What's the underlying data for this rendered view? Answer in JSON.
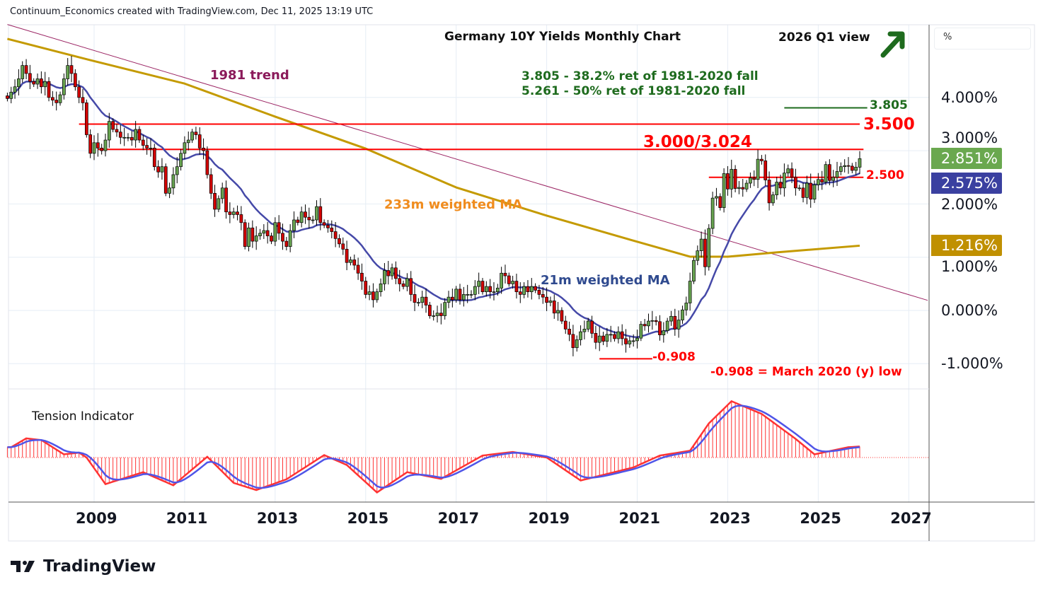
{
  "header": {
    "credit": "Continuum_Economics created with TradingView.com, Dec 11, 2025 13:19 UTC"
  },
  "unit_label": "%",
  "logo_text": "TradingView",
  "colors": {
    "up": "#67a350",
    "down": "#d40000",
    "ma21": "#4549a8",
    "ma233": "#c49a00",
    "trend": "#9b2463",
    "level": "#ff0000",
    "fib": "#1e6b1e",
    "tension": "#ff3333",
    "tension_signal": "#4f55e8"
  },
  "chart_data": {
    "type": "candlestick",
    "title": "Germany 10Y Yields Monthly Chart",
    "view_label": "2026 Q1 view",
    "view_direction": "up",
    "ylabel": "%",
    "ylim": [
      -1.35,
      5.8
    ],
    "yticks": [
      "4.000%",
      "3.000%",
      "2.000%",
      "1.000%",
      "0.000%",
      "-1.000%"
    ],
    "ytick_values": [
      4,
      3,
      2,
      1,
      0,
      -1
    ],
    "xticks": [
      "2009",
      "2011",
      "2013",
      "2015",
      "2017",
      "2019",
      "2021",
      "2023",
      "2025",
      "2027"
    ],
    "start": "2007-02",
    "monthly_closes": {
      "2007": [
        3.98,
        4.1,
        4.2,
        4.35,
        4.6,
        4.45,
        4.3,
        4.25,
        4.35,
        4.2,
        4.3
      ],
      "2008": [
        4.0,
        3.95,
        3.9,
        4.05,
        4.35,
        4.6,
        4.45,
        4.2,
        4.0,
        3.9,
        3.3,
        2.95
      ],
      "2009": [
        3.15,
        3.05,
        3.0,
        3.2,
        3.55,
        3.4,
        3.35,
        3.25,
        3.25,
        3.25,
        3.2,
        3.4
      ],
      "2010": [
        3.2,
        3.1,
        3.05,
        3.05,
        2.7,
        2.6,
        2.7,
        2.2,
        2.3,
        2.55,
        2.7,
        2.95
      ],
      "2011": [
        3.15,
        3.2,
        3.35,
        3.3,
        3.05,
        3.0,
        2.55,
        2.2,
        1.9,
        2.1,
        2.3,
        1.85
      ],
      "2012": [
        1.8,
        1.85,
        1.8,
        1.65,
        1.2,
        1.55,
        1.3,
        1.4,
        1.45,
        1.5,
        1.4,
        1.3
      ],
      "2013": [
        1.65,
        1.45,
        1.3,
        1.2,
        1.5,
        1.7,
        1.65,
        1.85,
        1.75,
        1.7,
        1.7,
        1.95
      ],
      "2014": [
        1.65,
        1.6,
        1.55,
        1.48,
        1.35,
        1.25,
        1.15,
        0.9,
        0.95,
        0.85,
        0.7,
        0.55
      ],
      "2015": [
        0.3,
        0.35,
        0.2,
        0.35,
        0.5,
        0.75,
        0.65,
        0.8,
        0.6,
        0.5,
        0.45,
        0.6
      ],
      "2016": [
        0.3,
        0.15,
        0.15,
        0.25,
        0.1,
        -0.1,
        -0.1,
        -0.05,
        -0.1,
        0.15,
        0.25,
        0.2
      ],
      "2017": [
        0.4,
        0.2,
        0.3,
        0.3,
        0.3,
        0.45,
        0.55,
        0.35,
        0.45,
        0.35,
        0.35,
        0.42
      ],
      "2018": [
        0.7,
        0.65,
        0.5,
        0.55,
        0.35,
        0.3,
        0.45,
        0.35,
        0.45,
        0.38,
        0.3,
        0.25
      ],
      "2019": [
        0.15,
        0.18,
        -0.05,
        0.0,
        -0.2,
        -0.35,
        -0.45,
        -0.7,
        -0.55,
        -0.4,
        -0.35,
        -0.2
      ],
      "2020": [
        -0.43,
        -0.6,
        -0.48,
        -0.58,
        -0.45,
        -0.45,
        -0.53,
        -0.4,
        -0.53,
        -0.63,
        -0.57,
        -0.57
      ],
      "2021": [
        -0.52,
        -0.26,
        -0.29,
        -0.2,
        -0.19,
        -0.21,
        -0.46,
        -0.38,
        -0.2,
        -0.11,
        -0.35,
        -0.18
      ],
      "2022": [
        0.01,
        0.14,
        0.55,
        0.94,
        1.12,
        1.34,
        0.82,
        1.54,
        2.11,
        2.14,
        1.93,
        2.57
      ],
      "2023": [
        2.28,
        2.65,
        2.29,
        2.31,
        2.28,
        2.39,
        2.49,
        2.46,
        2.84,
        2.81,
        2.45,
        2.02
      ],
      "2024": [
        2.17,
        2.41,
        2.3,
        2.58,
        2.66,
        2.5,
        2.3,
        2.3,
        2.12,
        2.39,
        2.09,
        2.36
      ],
      "2025": [
        2.46,
        2.41,
        2.74,
        2.44,
        2.5,
        2.61,
        2.7,
        2.72,
        2.71,
        2.63,
        2.69,
        2.851
      ]
    },
    "ma233_points": [
      [
        "2007-02",
        5.1
      ],
      [
        "2008-12",
        4.7
      ],
      [
        "2011-01",
        4.26
      ],
      [
        "2013-01",
        3.64
      ],
      [
        "2015-01",
        3.04
      ],
      [
        "2017-01",
        2.31
      ],
      [
        "2019-01",
        1.78
      ],
      [
        "2021-01",
        1.29
      ],
      [
        "2022-03",
        1.01
      ],
      [
        "2023-01",
        1.01
      ],
      [
        "2024-02",
        1.09
      ],
      [
        "2025-12",
        1.216
      ]
    ],
    "trend_1981": [
      [
        "2007-02",
        5.37
      ],
      [
        "2027-06",
        0.19
      ]
    ],
    "levels": [
      {
        "name": "resistance-3500",
        "value": 3.5,
        "from": "2008-09",
        "to": "2025-12",
        "label": "3.500",
        "color": "#ff0000"
      },
      {
        "name": "resistance-3000",
        "value": 3.024,
        "from": "2009-02",
        "to": "2026-01",
        "label": "3.000/3.024",
        "color": "#ff0000"
      },
      {
        "name": "fib-3805",
        "value": 3.805,
        "from": "2024-04",
        "to": "2026-02",
        "label": "3.805",
        "color": "#1e6b1e"
      },
      {
        "name": "support-2500",
        "value": 2.5,
        "from": "2022-08",
        "to": "2026-01",
        "label": "2.500",
        "color": "#ff0000"
      },
      {
        "name": "low-0908",
        "value": -0.908,
        "from": "2020-03",
        "to": "2021-05",
        "label": "-0.908",
        "color": "#ff0000"
      }
    ],
    "last_values": {
      "close": "2.851%",
      "ma21": "2.575%",
      "ma233": "1.216%"
    },
    "annotations": {
      "trend": "1981 trend",
      "fib1": "3.805 - 38.2% ret of 1981-2020 fall",
      "fib2": "5.261 - 50% ret of 1981-2020 fall",
      "ma233": "233m weighted MA",
      "ma21": "21m weighted MA",
      "low_note": "-0.908 = March 2020 (y) low"
    },
    "indicator": {
      "title": "Tension Indicator",
      "points": [
        [
          "2007-03",
          1.46
        ],
        [
          "2007-07",
          2.71
        ],
        [
          "2007-11",
          2.47
        ],
        [
          "2008-05",
          0.45
        ],
        [
          "2008-09",
          0.69
        ],
        [
          "2008-11",
          0.0
        ],
        [
          "2009-04",
          -3.76
        ],
        [
          "2010-02",
          -2.07
        ],
        [
          "2010-10",
          -3.93
        ],
        [
          "2011-07",
          0.11
        ],
        [
          "2012-02",
          -3.59
        ],
        [
          "2012-08",
          -4.6
        ],
        [
          "2013-04",
          -3.08
        ],
        [
          "2014-02",
          0.35
        ],
        [
          "2014-08",
          -1.06
        ],
        [
          "2015-04",
          -4.94
        ],
        [
          "2015-12",
          -2.07
        ],
        [
          "2016-09",
          -3.02
        ],
        [
          "2017-08",
          0.28
        ],
        [
          "2018-04",
          0.79
        ],
        [
          "2019-01",
          0.0
        ],
        [
          "2019-10",
          -3.25
        ],
        [
          "2020-12",
          -1.4
        ],
        [
          "2021-07",
          0.28
        ],
        [
          "2022-03",
          0.96
        ],
        [
          "2022-08",
          4.83
        ],
        [
          "2023-02",
          7.96
        ],
        [
          "2023-10",
          6.17
        ],
        [
          "2024-07",
          2.64
        ],
        [
          "2024-12",
          0.45
        ],
        [
          "2025-09",
          1.46
        ],
        [
          "2025-12",
          1.56
        ]
      ]
    }
  }
}
